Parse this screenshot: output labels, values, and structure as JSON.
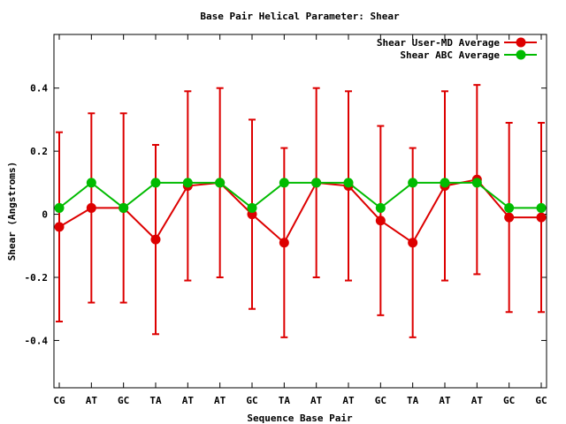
{
  "chart_data": {
    "type": "line",
    "title": "Base Pair Helical Parameter: Shear",
    "xlabel": "Sequence Base Pair",
    "ylabel": "Shear (Angstroms)",
    "categories": [
      "CG",
      "AT",
      "GC",
      "TA",
      "AT",
      "AT",
      "GC",
      "TA",
      "AT",
      "AT",
      "GC",
      "TA",
      "AT",
      "AT",
      "GC",
      "GC"
    ],
    "ylim": [
      -0.55,
      0.57
    ],
    "yticks": [
      -0.4,
      -0.2,
      0,
      0.2,
      0.4
    ],
    "ytick_labels": [
      "-0.4",
      "-0.2",
      "0",
      "0.2",
      "0.4"
    ],
    "grid": false,
    "legend_position": "top-right",
    "series": [
      {
        "name": "Shear User-MD Average",
        "color": "#dd0000",
        "values": [
          -0.04,
          0.02,
          0.02,
          -0.08,
          0.09,
          0.1,
          0.0,
          -0.09,
          0.1,
          0.09,
          -0.02,
          -0.09,
          0.09,
          0.11,
          -0.01,
          -0.01
        ],
        "error": [
          0.3,
          0.3,
          0.3,
          0.3,
          0.3,
          0.3,
          0.3,
          0.3,
          0.3,
          0.3,
          0.3,
          0.3,
          0.3,
          0.3,
          0.3,
          0.3
        ]
      },
      {
        "name": "Shear ABC Average",
        "color": "#00bb00",
        "values": [
          0.02,
          0.1,
          0.02,
          0.1,
          0.1,
          0.1,
          0.02,
          0.1,
          0.1,
          0.1,
          0.02,
          0.1,
          0.1,
          0.1,
          0.02,
          0.02
        ]
      }
    ]
  }
}
